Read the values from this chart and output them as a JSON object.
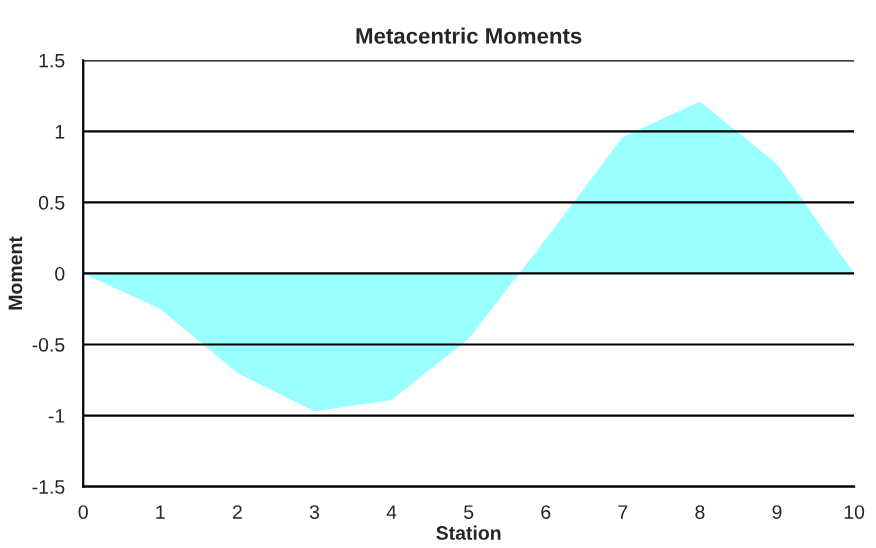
{
  "chart_data": {
    "type": "area",
    "title": "Metacentric Moments",
    "xlabel": "Station",
    "ylabel": "Moment",
    "x": [
      0,
      1,
      2,
      3,
      4,
      5,
      6,
      7,
      8,
      9,
      10
    ],
    "series": [
      {
        "color": "#99ffff",
        "values": [
          0,
          -0.25,
          -0.7,
          -0.97,
          -0.89,
          -0.46,
          0.24,
          0.96,
          1.21,
          0.77,
          0
        ]
      }
    ],
    "xlim": [
      0,
      10
    ],
    "xticks": [
      0,
      1,
      2,
      3,
      4,
      5,
      6,
      7,
      8,
      9,
      10
    ],
    "ylim": [
      -1.5,
      1.5
    ],
    "yticks": [
      -1.5,
      -1,
      -0.5,
      0,
      0.5,
      1,
      1.5
    ],
    "grid": "y"
  }
}
